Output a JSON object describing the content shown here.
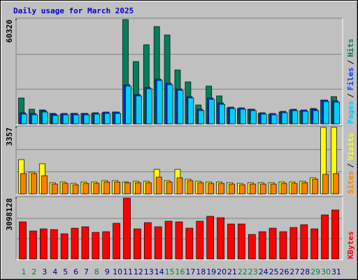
{
  "chart_data": [
    {
      "type": "bar",
      "title": "Daily usage for March 2025",
      "legend_separator": "/",
      "ylim": [
        0,
        60320
      ],
      "yticks": [
        60320
      ],
      "series": [
        {
          "name": "Hits",
          "color": "#00805c",
          "values": [
            14985,
            8505,
            8100,
            6075,
            5670,
            6075,
            6075,
            6075,
            6480,
            6885,
            60320,
            36045,
            45765,
            56295,
            51435,
            31185,
            24300,
            10935,
            21870,
            16200,
            9315,
            8910,
            8505,
            6075,
            5670,
            6885,
            8100,
            7695,
            8910,
            13770,
            15795
          ]
        },
        {
          "name": "Files",
          "color": "#0040ff",
          "values": [
            6470,
            6065,
            7685,
            5660,
            6065,
            6065,
            6065,
            6470,
            6875,
            6875,
            22670,
            17000,
            21050,
            25910,
            23480,
            20240,
            15785,
            8495,
            14975,
            12140,
            9710,
            9305,
            8495,
            6470,
            6065,
            7280,
            8495,
            8090,
            8495,
            13760,
            13355
          ]
        },
        {
          "name": "Pages",
          "color": "#00d0ff",
          "values": [
            5670,
            5265,
            6885,
            4860,
            5265,
            5265,
            5265,
            5670,
            6075,
            6075,
            21870,
            16200,
            20250,
            25110,
            22680,
            19440,
            14985,
            7695,
            14175,
            11340,
            8910,
            8505,
            7695,
            5670,
            5265,
            6480,
            7695,
            7290,
            7695,
            12960,
            12555
          ]
        }
      ]
    },
    {
      "type": "bar",
      "legend_separator": "/",
      "ylim": [
        0,
        3357
      ],
      "yticks": [
        3357
      ],
      "series": [
        {
          "name": "Visits",
          "color": "#ffff00",
          "values": [
            1731,
            1095,
            1520,
            565,
            601,
            530,
            601,
            601,
            671,
            671,
            601,
            636,
            636,
            1237,
            671,
            1237,
            742,
            636,
            601,
            601,
            565,
            530,
            565,
            565,
            565,
            601,
            601,
            636,
            813,
            3357,
            3357
          ]
        },
        {
          "name": "Sites",
          "color": "#ff8000",
          "values": [
            1025,
            1025,
            919,
            495,
            530,
            459,
            530,
            530,
            601,
            601,
            565,
            565,
            565,
            848,
            601,
            813,
            671,
            565,
            530,
            530,
            495,
            459,
            495,
            495,
            495,
            530,
            530,
            565,
            742,
            989,
            1025
          ]
        }
      ]
    },
    {
      "type": "bar",
      "ylim": [
        0,
        3098128
      ],
      "yticks": [
        3098128
      ],
      "categories": [
        "1",
        "2",
        "3",
        "4",
        "5",
        "6",
        "7",
        "8",
        "9",
        "10",
        "11",
        "12",
        "13",
        "14",
        "15",
        "16",
        "17",
        "18",
        "19",
        "20",
        "21",
        "22",
        "23",
        "24",
        "25",
        "26",
        "27",
        "28",
        "29",
        "30",
        "31"
      ],
      "category_colors": [
        "#008040",
        "#008040",
        "#00008b",
        "#00008b",
        "#00008b",
        "#00008b",
        "#00008b",
        "#008040",
        "#00008b",
        "#00008b",
        "#00008b",
        "#00008b",
        "#00008b",
        "#00008b",
        "#008040",
        "#008040",
        "#00008b",
        "#00008b",
        "#00008b",
        "#00008b",
        "#00008b",
        "#008040",
        "#008040",
        "#00008b",
        "#00008b",
        "#00008b",
        "#00008b",
        "#00008b",
        "#008040",
        "#008040",
        "#00008b"
      ],
      "series": [
        {
          "name": "KBytes",
          "color": "#ff0000",
          "values": [
            1887330,
            1424400,
            1531230,
            1495620,
            1281960,
            1566840,
            1638060,
            1353180,
            1388790,
            1816110,
            3098128,
            1531230,
            1851720,
            1638060,
            1922940,
            1887330,
            1566840,
            1922940,
            2172210,
            2100990,
            1780500,
            1780500,
            1246350,
            1388790,
            1566840,
            1388790,
            1602450,
            1744890,
            1531230,
            2243430,
            2492700
          ]
        }
      ]
    }
  ]
}
